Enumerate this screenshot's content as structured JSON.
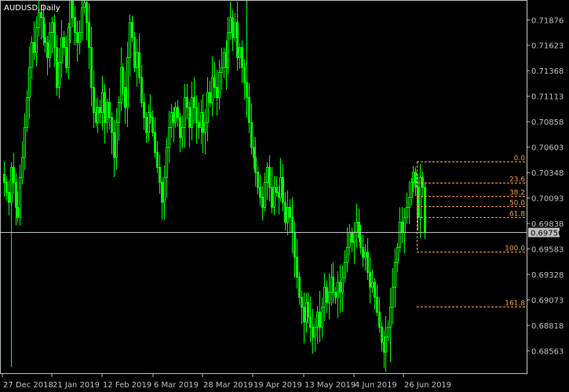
{
  "window": {
    "title": "AUDUSD,Daily"
  },
  "colors": {
    "background": "#000000",
    "candle": "#00ff00",
    "grid_frame": "#c0c0c0",
    "fib": "#f0a040",
    "price_line": "#c0c0c0",
    "price_tag_bg": "#c0c0c0",
    "price_tag_text": "#000000"
  },
  "chart_data": {
    "type": "candlestick",
    "symbol": "AUDUSD",
    "timeframe": "Daily",
    "ylim": [
      0.684,
      0.721
    ],
    "y_ticks": [
      "0.71876",
      "0.71623",
      "0.71368",
      "0.71113",
      "0.70858",
      "0.70603",
      "0.70348",
      "0.70093",
      "0.69838",
      "0.69583",
      "0.69328",
      "0.69073",
      "0.68818",
      "0.68563"
    ],
    "x_ticks": [
      "27 Dec 2018",
      "21 Jan 2019",
      "12 Feb 2019",
      "6 Mar 2019",
      "28 Mar 2019",
      "19 Apr 2019",
      "13 May 2019",
      "4 Jun 2019",
      "26 Jun 2019"
    ],
    "current_price": "0.69756",
    "fibonacci": {
      "high": 0.7046,
      "low": 0.6956,
      "levels": [
        {
          "label": "0.0",
          "ratio": 0.0
        },
        {
          "label": "23.6",
          "ratio": 0.236
        },
        {
          "label": "38.2",
          "ratio": 0.382
        },
        {
          "label": "50.0",
          "ratio": 0.5
        },
        {
          "label": "61.8",
          "ratio": 0.618
        },
        {
          "label": "100.0",
          "ratio": 1.0
        },
        {
          "label": "161.8",
          "ratio": 1.618
        }
      ]
    },
    "close_path": [
      0.7025,
      0.7015,
      0.7005,
      0.704,
      0.7025,
      0.7,
      0.699,
      0.703,
      0.705,
      0.708,
      0.711,
      0.714,
      0.7165,
      0.7155,
      0.718,
      0.7195,
      0.719,
      0.717,
      0.7165,
      0.715,
      0.7175,
      0.7185,
      0.716,
      0.712,
      0.7145,
      0.717,
      0.716,
      0.714,
      0.718,
      0.721,
      0.719,
      0.7175,
      0.7165,
      0.7175,
      0.72,
      0.7205,
      0.7185,
      0.716,
      0.712,
      0.7095,
      0.7085,
      0.71,
      0.7095,
      0.7115,
      0.7085,
      0.7105,
      0.709,
      0.7075,
      0.705,
      0.7085,
      0.7105,
      0.714,
      0.712,
      0.71,
      0.715,
      0.7185,
      0.717,
      0.714,
      0.7155,
      0.713,
      0.7105,
      0.709,
      0.7075,
      0.7095,
      0.709,
      0.7075,
      0.7055,
      0.704,
      0.7025,
      0.7005,
      0.703,
      0.706,
      0.708,
      0.7095,
      0.7085,
      0.71,
      0.709,
      0.707,
      0.708,
      0.711,
      0.71,
      0.708,
      0.711,
      0.71,
      0.7085,
      0.708,
      0.7095,
      0.7075,
      0.7085,
      0.7115,
      0.7105,
      0.713,
      0.712,
      0.711,
      0.7135,
      0.714,
      0.7155,
      0.714,
      0.7175,
      0.719,
      0.717,
      0.7185,
      0.715,
      0.716,
      0.714,
      0.7125,
      0.711,
      0.7085,
      0.706,
      0.705,
      0.7035,
      0.702,
      0.701,
      0.7,
      0.7025,
      0.704,
      0.702,
      0.7,
      0.702,
      0.7015,
      0.701,
      0.703,
      0.7005,
      0.6985,
      0.7,
      0.699,
      0.6975,
      0.695,
      0.693,
      0.691,
      0.69,
      0.6885,
      0.6905,
      0.689,
      0.688,
      0.687,
      0.688,
      0.6895,
      0.688,
      0.69,
      0.692,
      0.6905,
      0.6915,
      0.693,
      0.6915,
      0.691,
      0.6925,
      0.6915,
      0.693,
      0.6945,
      0.696,
      0.6975,
      0.6965,
      0.6975,
      0.6985,
      0.697,
      0.696,
      0.695,
      0.6955,
      0.6935,
      0.692,
      0.6925,
      0.691,
      0.6895,
      0.688,
      0.6865,
      0.6855,
      0.687,
      0.688,
      0.69,
      0.692,
      0.6945,
      0.696,
      0.6985,
      0.6975,
      0.699,
      0.7,
      0.701,
      0.7025,
      0.7035,
      0.702,
      0.699,
      0.703,
      0.702,
      0.6975
    ]
  }
}
